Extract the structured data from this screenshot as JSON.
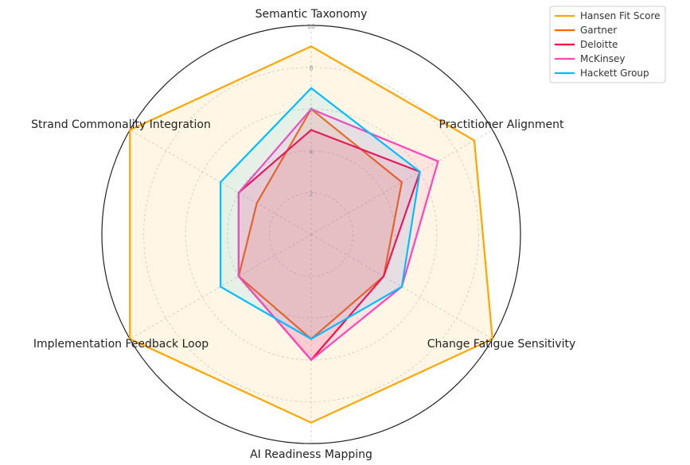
{
  "chart_data": {
    "type": "radar",
    "title": "",
    "axes": [
      "Semantic Taxonomy",
      "Practitioner Alignment",
      "Change Fatigue Sensitivity",
      "AI Readiness Mapping",
      "Implementation Feedback Loop",
      "Strand Commonality Integration"
    ],
    "rlim": [
      0,
      10
    ],
    "rticks": [
      "2",
      "4",
      "6",
      "8",
      "10"
    ],
    "rtick_values": [
      2,
      4,
      6,
      8,
      10
    ],
    "grid": true,
    "legend_position": "top-right",
    "series": [
      {
        "name": "Hansen Fit Score",
        "color": "#FFA500",
        "values": [
          9,
          9,
          10,
          9,
          10,
          10
        ]
      },
      {
        "name": "Gartner",
        "color": "#FF6600",
        "values": [
          6,
          5,
          4,
          5,
          4,
          3
        ]
      },
      {
        "name": "Deloitte",
        "color": "#FF0040",
        "values": [
          5,
          6,
          4,
          6,
          4,
          4
        ]
      },
      {
        "name": "McKinsey",
        "color": "#FF44BB",
        "values": [
          6,
          7,
          5,
          6,
          4,
          4
        ]
      },
      {
        "name": "Hackett Group",
        "color": "#00BFFF",
        "values": [
          7,
          6,
          5,
          5,
          5,
          5
        ]
      }
    ]
  }
}
